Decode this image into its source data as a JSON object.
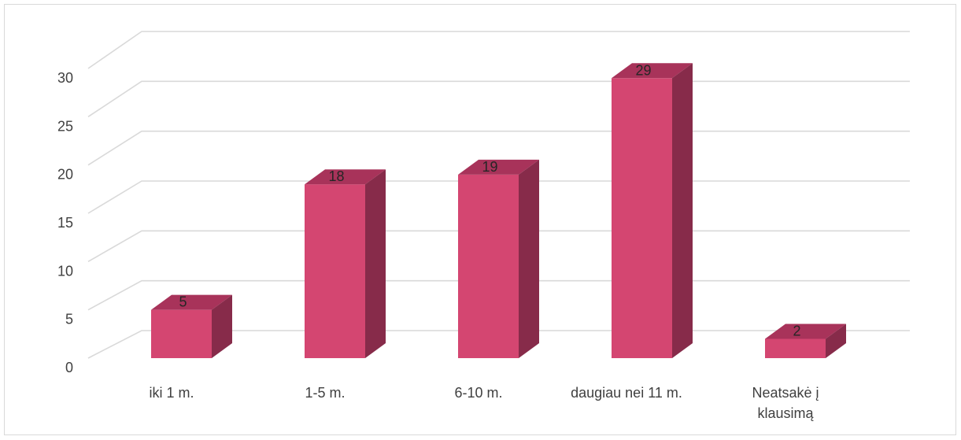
{
  "chart_data": {
    "type": "bar",
    "style": "3d-column",
    "title": "",
    "xlabel": "",
    "ylabel": "",
    "categories": [
      [
        "iki 1 m."
      ],
      [
        "1-5 m."
      ],
      [
        "6-10 m."
      ],
      [
        "daugiau nei 11 m."
      ],
      [
        "Neatsakė į",
        "klausimą"
      ]
    ],
    "values": [
      5,
      18,
      19,
      29,
      2
    ],
    "data_labels": [
      "5",
      "18",
      "19",
      "29",
      "2"
    ],
    "ylim": [
      0,
      30
    ],
    "yticks": [
      0,
      5,
      10,
      15,
      20,
      25,
      30
    ],
    "ytick_labels": [
      "0",
      "5",
      "10",
      "15",
      "20",
      "25",
      "30"
    ],
    "grid": true,
    "legend": "none",
    "colors": {
      "bar_front": "#d44671",
      "bar_top": "#a8335a",
      "bar_side": "#872b4a",
      "grid": "#d9d9d9",
      "text": "#404040"
    }
  }
}
